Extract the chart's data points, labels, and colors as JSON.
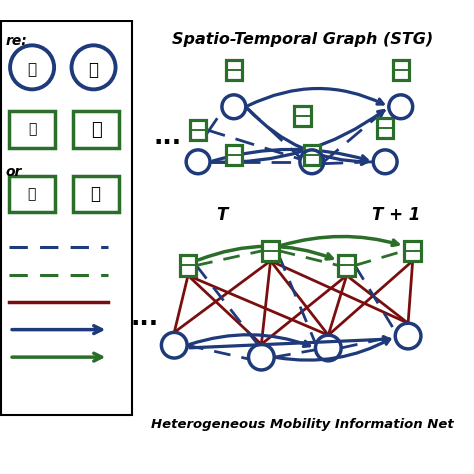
{
  "title_stg": "Spatio-Temporal Graph (STG)",
  "title_het": "Heterogeneous Mobility Information Net",
  "label_T": "T",
  "label_T1": "T + 1",
  "bg_color": "#ffffff",
  "blue": "#1e3a7a",
  "green": "#2a6e2a",
  "dark_red": "#7a0e0e",
  "figsize": [
    4.74,
    4.74
  ],
  "dpi": 100
}
